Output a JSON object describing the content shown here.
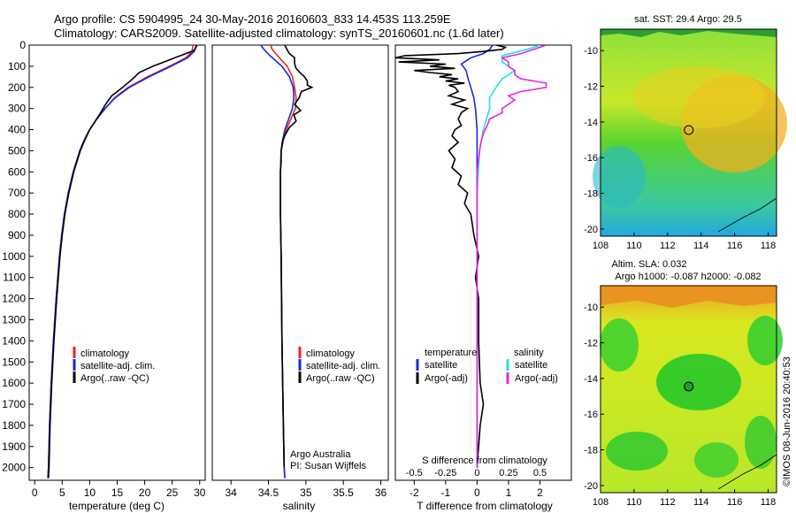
{
  "header": {
    "line1": "Argo profile: CS 5904995_24 30-May-2016 20160603_833 14.453S 113.259E",
    "line2": "Climatology: CARS2009. Satellite-adjusted climatology: synTS_20160601.nc (1.6d later)"
  },
  "depth_ticks": [
    0,
    100,
    200,
    300,
    400,
    500,
    600,
    700,
    800,
    900,
    1000,
    1100,
    1200,
    1300,
    1400,
    1500,
    1600,
    1700,
    1800,
    1900,
    2000
  ],
  "colors": {
    "climatology": "#e8281c",
    "satellite": "#1428e6",
    "argo": "#000000",
    "salinity_sat": "#22e0e8",
    "salinity_argo": "#e428e0"
  },
  "chart_data": [
    {
      "type": "line",
      "xlabel": "temperature (deg C)",
      "xlim": [
        -1,
        31
      ],
      "xticks": [
        0,
        5,
        10,
        15,
        20,
        25,
        30
      ],
      "ylim": [
        2060,
        0
      ],
      "legend": [
        "climatology",
        "satellite-adj. clim.",
        "Argo(..raw -QC)"
      ],
      "series": [
        {
          "name": "climatology",
          "depth": [
            0,
            30,
            60,
            100,
            150,
            200,
            250,
            300,
            350,
            400,
            450,
            500,
            600,
            700,
            800,
            900,
            1000,
            1200,
            1400,
            1600,
            1800,
            2000,
            2050
          ],
          "values": [
            28.8,
            28.6,
            27.5,
            24.5,
            20.5,
            17.0,
            14.5,
            12.8,
            11.3,
            10.0,
            9.0,
            8.2,
            7.0,
            6.1,
            5.4,
            4.9,
            4.5,
            3.9,
            3.4,
            3.0,
            2.7,
            2.5,
            2.4
          ]
        },
        {
          "name": "satellite-adj. clim.",
          "depth": [
            0,
            30,
            60,
            100,
            150,
            200,
            250,
            300,
            350,
            400,
            450,
            500,
            600,
            700,
            800,
            900,
            1000,
            1200,
            1400,
            1600,
            1800,
            2000,
            2050
          ],
          "values": [
            29.4,
            29.0,
            27.8,
            24.8,
            20.8,
            17.2,
            14.6,
            12.8,
            11.3,
            10.0,
            9.0,
            8.2,
            7.0,
            6.1,
            5.4,
            4.9,
            4.5,
            3.9,
            3.4,
            3.0,
            2.7,
            2.5,
            2.4
          ]
        },
        {
          "name": "Argo(..raw -QC)",
          "depth": [
            0,
            25,
            45,
            60,
            80,
            100,
            130,
            160,
            200,
            240,
            280,
            320,
            360,
            400,
            450,
            500,
            600,
            700,
            800,
            900,
            1000,
            1200,
            1400,
            1600,
            1800,
            2000,
            2050
          ],
          "values": [
            29.5,
            29.0,
            27.0,
            25.5,
            23.5,
            21.5,
            19.0,
            17.8,
            16.0,
            14.0,
            12.9,
            12.0,
            11.0,
            10.0,
            9.1,
            8.3,
            7.1,
            6.2,
            5.5,
            5.0,
            4.6,
            4.0,
            3.5,
            3.1,
            2.8,
            2.6,
            2.5
          ]
        }
      ]
    },
    {
      "type": "line",
      "xlabel": "salinity",
      "xlim": [
        33.75,
        36.1
      ],
      "xticks": [
        34,
        34.5,
        35,
        35.5,
        36
      ],
      "ylim": [
        2060,
        0
      ],
      "legend": [
        "climatology",
        "satellite-adj. clim.",
        "Argo(..raw -QC)"
      ],
      "annotation": [
        "Argo Australia",
        "PI: Susan Wijffels"
      ],
      "series": [
        {
          "name": "climatology",
          "depth": [
            0,
            20,
            50,
            100,
            150,
            200,
            250,
            300,
            350,
            400,
            450,
            500,
            600,
            800,
            1000,
            1400,
            1800,
            2000,
            2050
          ],
          "values": [
            34.53,
            34.55,
            34.62,
            34.75,
            34.82,
            34.85,
            34.87,
            34.86,
            34.8,
            34.74,
            34.7,
            34.67,
            34.66,
            34.66,
            34.67,
            34.68,
            34.7,
            34.71,
            34.72
          ]
        },
        {
          "name": "satellite-adj. clim.",
          "depth": [
            0,
            20,
            50,
            100,
            150,
            200,
            250,
            300,
            350,
            400,
            450,
            500,
            600,
            800,
            1000,
            1400,
            1800,
            2000,
            2050
          ],
          "values": [
            34.4,
            34.44,
            34.52,
            34.68,
            34.78,
            34.83,
            34.84,
            34.82,
            34.77,
            34.72,
            34.69,
            34.67,
            34.66,
            34.66,
            34.67,
            34.68,
            34.7,
            34.71,
            34.72
          ]
        },
        {
          "name": "Argo(..raw -QC)",
          "depth": [
            0,
            15,
            40,
            60,
            90,
            110,
            130,
            150,
            170,
            190,
            200,
            220,
            250,
            280,
            310,
            330,
            360,
            390,
            420,
            450,
            500,
            550,
            600,
            800,
            1000,
            1400,
            1800,
            2000
          ],
          "values": [
            34.72,
            34.74,
            34.78,
            34.85,
            34.85,
            34.87,
            34.92,
            34.98,
            35.02,
            35.02,
            35.08,
            34.94,
            34.91,
            34.85,
            34.93,
            34.84,
            34.87,
            34.78,
            34.73,
            34.69,
            34.67,
            34.67,
            34.66,
            34.66,
            34.67,
            34.68,
            34.7,
            34.71
          ]
        }
      ]
    },
    {
      "type": "line",
      "xlabel": "T difference from climatology",
      "xlabel_top": "S difference from climatology",
      "xlim": [
        -2.6,
        3.0
      ],
      "xticks": [
        -2,
        -1,
        0,
        1,
        2
      ],
      "xticks_top": [
        -0.5,
        -0.25,
        0,
        0.25,
        0.5
      ],
      "ylim": [
        2060,
        0
      ],
      "legend_temperature": {
        "heading": "temperature",
        "items": [
          "satellite",
          "Argo(-adj)"
        ]
      },
      "legend_salinity": {
        "heading": "salinity",
        "items": [
          "satellite",
          "Argo(-adj)"
        ]
      },
      "series": [
        {
          "name": "satellite",
          "quantity": "temperature",
          "depth": [
            0,
            20,
            40,
            60,
            90,
            120,
            150,
            200,
            250,
            300,
            400,
            500,
            700,
            1000,
            2000
          ],
          "values": [
            0.5,
            0.4,
            0.2,
            -0.2,
            -0.5,
            -0.35,
            -0.3,
            -0.2,
            -0.1,
            -0.05,
            0,
            0,
            0,
            0,
            0
          ]
        },
        {
          "name": "Argo(-adj)",
          "quantity": "temperature",
          "depth": [
            0,
            10,
            20,
            30,
            40,
            50,
            60,
            70,
            80,
            90,
            100,
            110,
            120,
            130,
            140,
            150,
            160,
            170,
            180,
            190,
            200,
            220,
            240,
            260,
            280,
            300,
            320,
            350,
            380,
            400,
            430,
            460,
            500,
            540,
            580,
            620,
            660,
            700,
            750,
            800,
            850,
            900,
            1000,
            1100,
            1200,
            1400,
            1600,
            1700,
            1800,
            2000
          ],
          "values": [
            0.6,
            0.9,
            0.8,
            0.2,
            -0.6,
            -2.3,
            -2.6,
            -1.2,
            -2.5,
            -1.0,
            -1.5,
            -0.7,
            -2.0,
            -1.5,
            -0.8,
            -1.2,
            -0.6,
            -1.0,
            -0.4,
            -0.9,
            -0.7,
            -0.6,
            -0.9,
            -0.4,
            -0.8,
            -0.3,
            -0.5,
            -0.6,
            -0.5,
            -0.7,
            -0.8,
            -0.6,
            -0.9,
            -0.7,
            -0.8,
            -0.5,
            -0.6,
            -0.3,
            -0.4,
            -0.2,
            -0.15,
            -0.1,
            0.05,
            -0.05,
            0.05,
            0.05,
            0.1,
            0.2,
            0.1,
            0.0
          ]
        },
        {
          "name": "satellite",
          "quantity": "salinity",
          "depth": [
            0,
            20,
            50,
            80,
            120,
            160,
            200,
            250,
            300,
            400,
            500,
            700,
            1000,
            2000
          ],
          "values": [
            0.5,
            0.4,
            0.2,
            0.2,
            0.3,
            0.2,
            0.15,
            0.1,
            0.1,
            0.05,
            0.02,
            0.0,
            0.0,
            0.0
          ]
        },
        {
          "name": "Argo(-adj)",
          "quantity": "salinity",
          "depth": [
            0,
            20,
            40,
            60,
            80,
            100,
            120,
            140,
            160,
            180,
            200,
            220,
            240,
            260,
            280,
            300,
            320,
            350,
            380,
            420,
            460,
            500,
            600,
            800,
            1000,
            2000
          ],
          "values": [
            0.55,
            0.45,
            0.35,
            0.2,
            0.25,
            0.25,
            0.3,
            0.3,
            0.35,
            0.55,
            0.55,
            0.35,
            0.25,
            0.3,
            0.25,
            0.2,
            0.2,
            0.1,
            0.08,
            0.05,
            0.03,
            0.02,
            0.0,
            0.0,
            0.0,
            0.0
          ]
        }
      ]
    },
    {
      "type": "heatmap",
      "title": "sat. SST: 29.4  Argo: 29.5",
      "xlim": [
        108,
        118.5
      ],
      "ylim": [
        -20.4,
        -8.8
      ],
      "xticks": [
        108,
        110,
        112,
        114,
        116,
        118
      ],
      "yticks": [
        -10,
        -12,
        -14,
        -16,
        -18,
        -20
      ],
      "marker": {
        "x": 113.26,
        "y": -14.45
      }
    },
    {
      "type": "heatmap",
      "title_lines": [
        "Altim. SLA: 0.032",
        "Argo h1000: -0.087  h2000: -0.082"
      ],
      "xlim": [
        108,
        118.5
      ],
      "ylim": [
        -20.4,
        -8.8
      ],
      "xticks": [
        108,
        110,
        112,
        114,
        116,
        118
      ],
      "yticks": [
        -10,
        -12,
        -14,
        -16,
        -18,
        -20
      ],
      "marker": {
        "x": 113.26,
        "y": -14.45
      }
    }
  ],
  "credit": "©IMOS 08-Jun-2016 20:40:53"
}
